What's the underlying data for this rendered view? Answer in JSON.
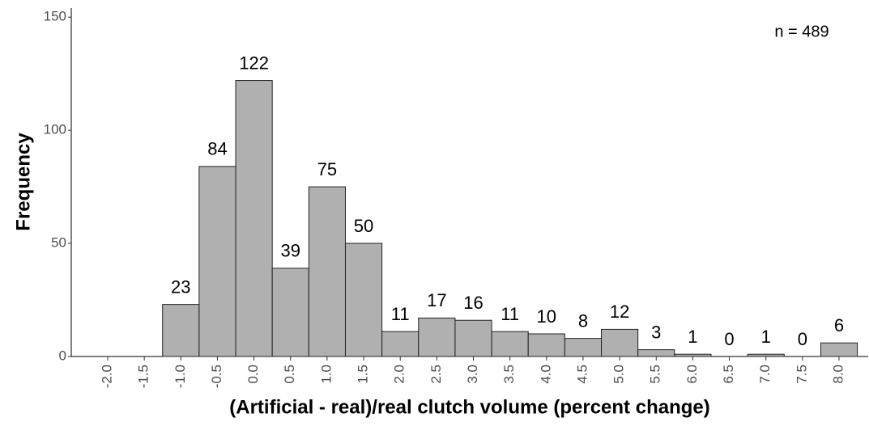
{
  "chart_data": {
    "type": "bar",
    "annotation": "n =  489",
    "x_label": "(Artificial - real)/real clutch volume (percent change)",
    "y_label": "Frequency",
    "categories": [
      "-2.0",
      "-1.5",
      "-1.0",
      "-0.5",
      "0.0",
      "0.5",
      "1.0",
      "1.5",
      "2.0",
      "2.5",
      "3.0",
      "3.5",
      "4.0",
      "4.5",
      "5.0",
      "5.5",
      "6.0",
      "6.5",
      "7.0",
      "7.5",
      "8.0"
    ],
    "values": [
      null,
      null,
      23,
      84,
      122,
      39,
      75,
      50,
      11,
      17,
      16,
      11,
      10,
      8,
      12,
      3,
      1,
      0,
      1,
      0,
      6
    ],
    "color": "#b0b0b0",
    "ylim": [
      0,
      154
    ],
    "yticks": [
      0,
      50,
      100,
      150
    ],
    "grid": false
  }
}
